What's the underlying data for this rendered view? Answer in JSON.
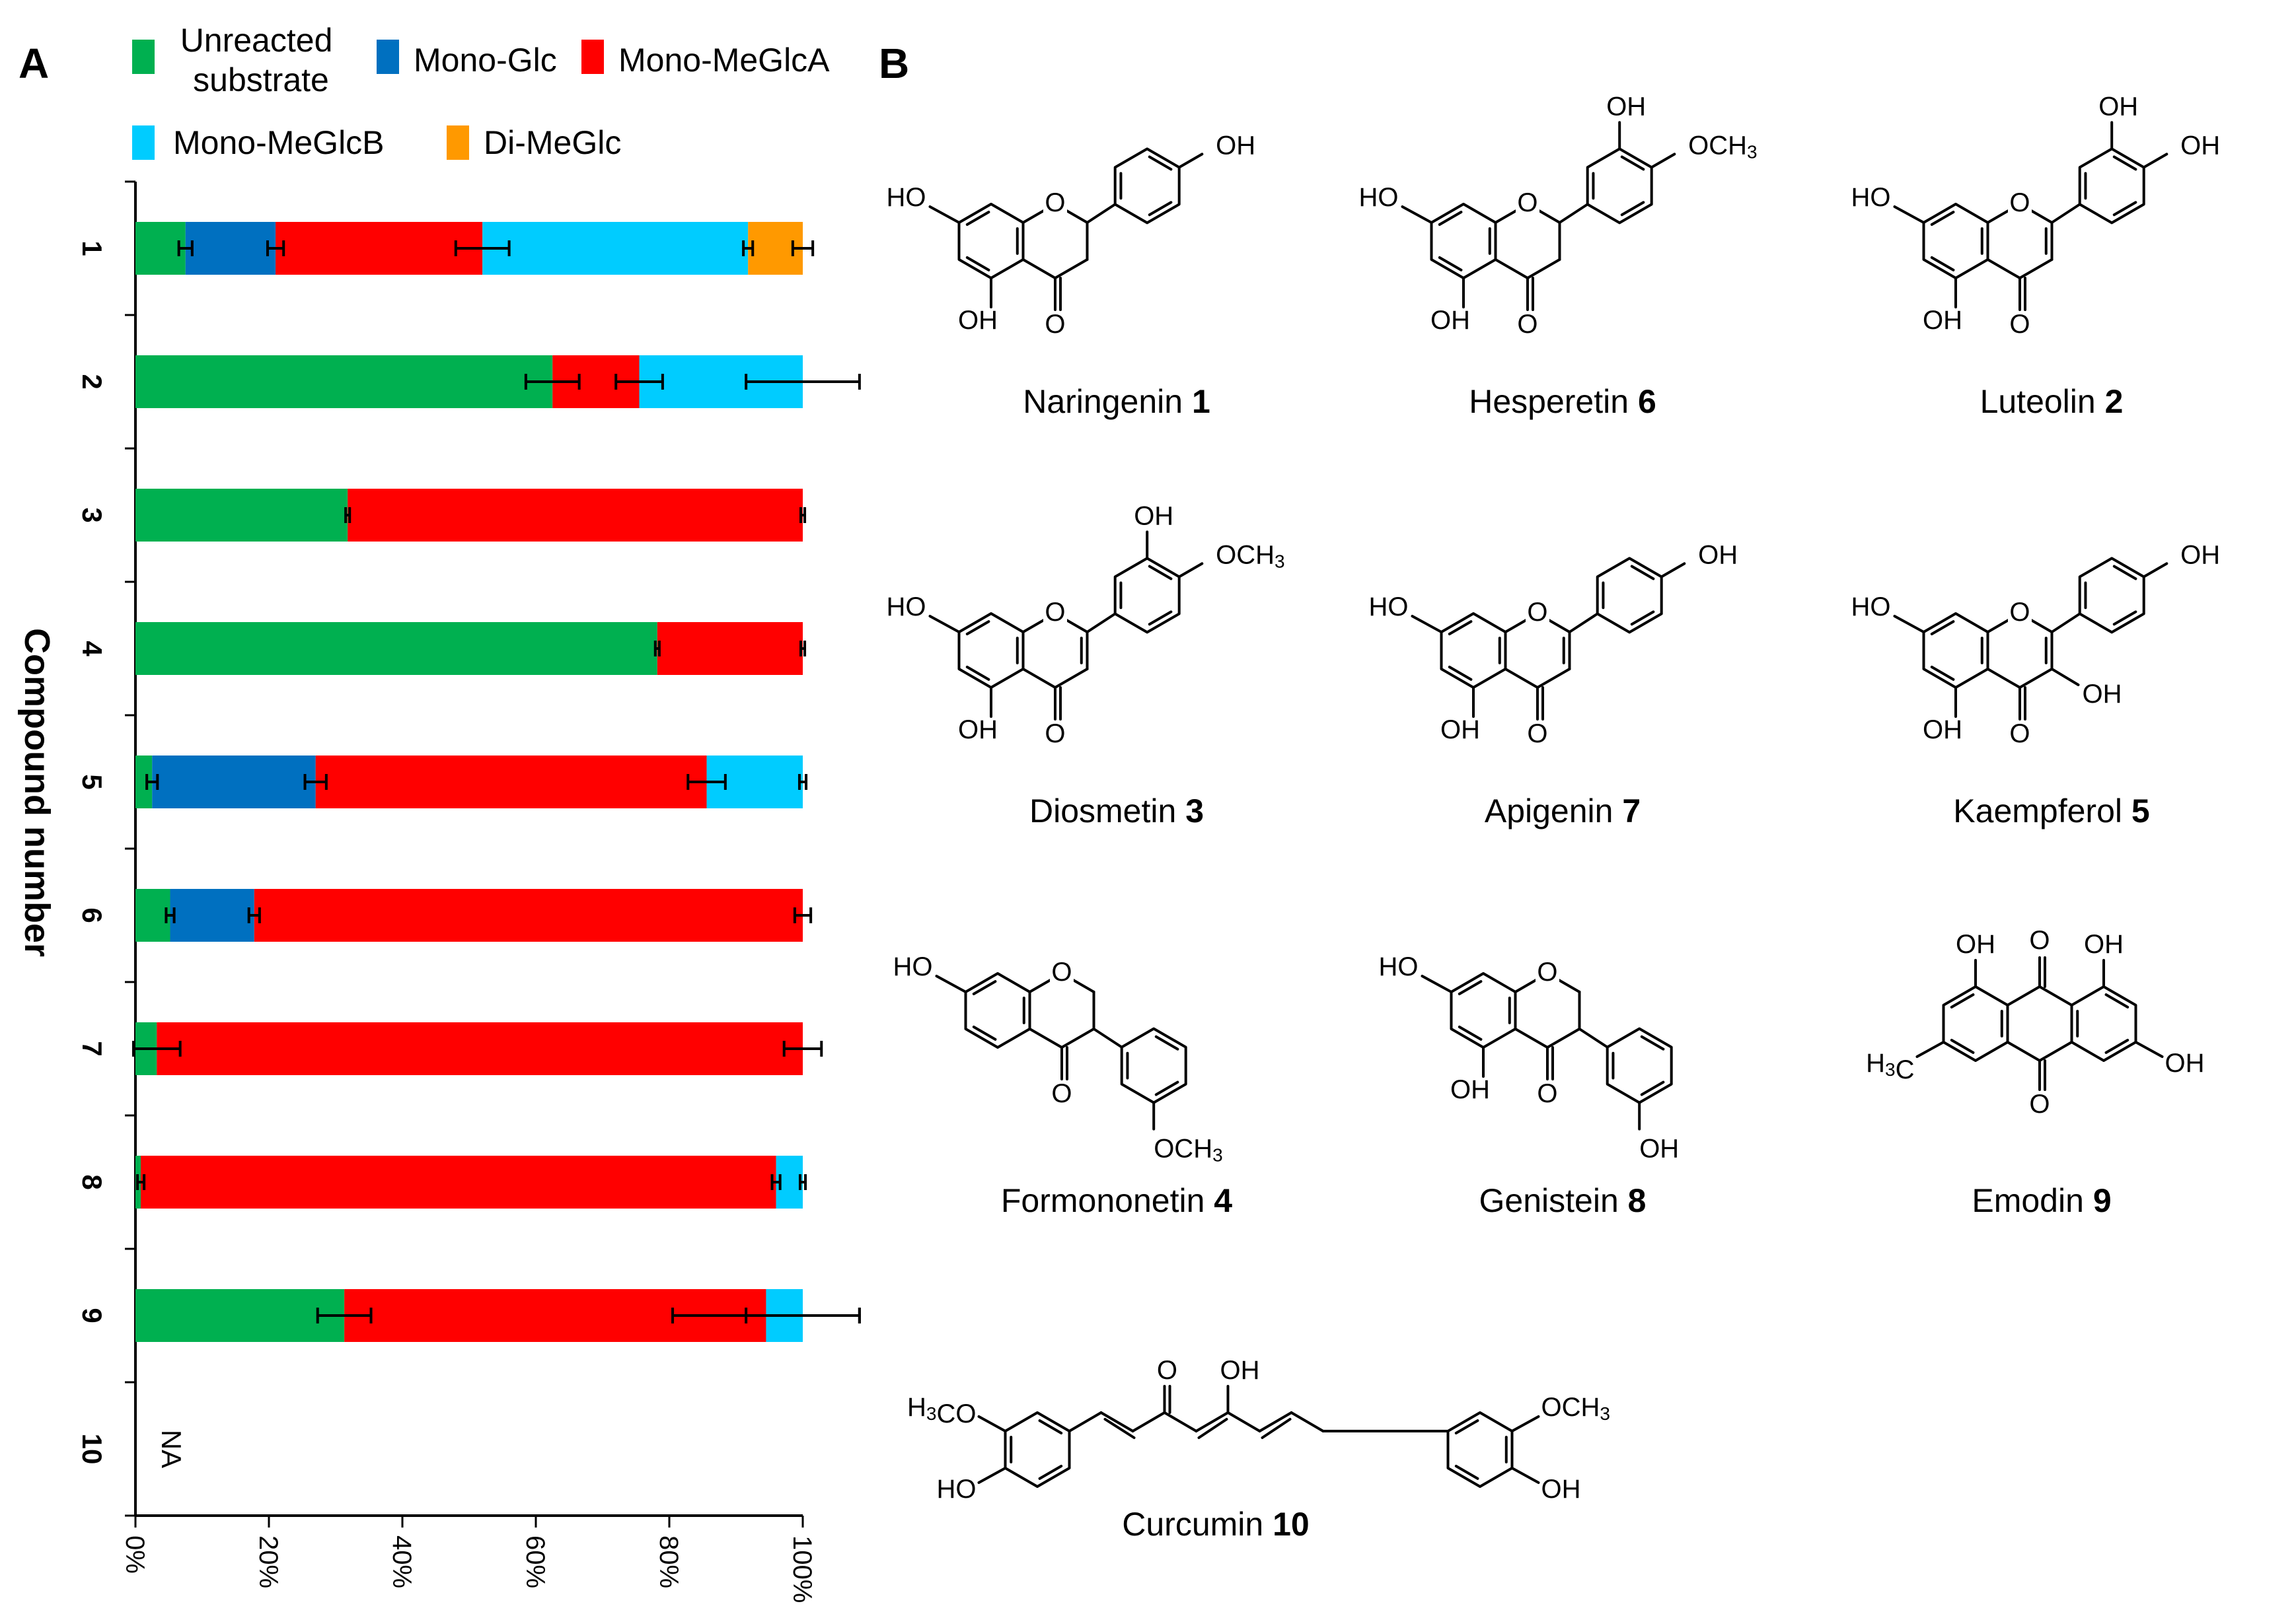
{
  "panels": {
    "a": "A",
    "b": "B"
  },
  "chart_data": {
    "type": "bar",
    "orientation": "horizontal",
    "stacked": true,
    "title": "",
    "xlabel": "",
    "ylabel": "Compound number",
    "xlim": [
      0,
      100
    ],
    "x_ticks": [
      "0%",
      "20%",
      "40%",
      "60%",
      "80%",
      "100%"
    ],
    "categories": [
      "1",
      "2",
      "3",
      "4",
      "5",
      "6",
      "7",
      "8",
      "9",
      "10"
    ],
    "na_label": "NA",
    "legend_position": "top",
    "series": [
      {
        "name": "Unreacted\nsubstrate",
        "color": "#00b050",
        "values": [
          7.5,
          62.5,
          31.8,
          78.2,
          2.5,
          5.2,
          3.2,
          0.8,
          31.3,
          null
        ],
        "errors": [
          1,
          4,
          0.3,
          0.3,
          0.8,
          0.6,
          3.5,
          0.5,
          4,
          null
        ]
      },
      {
        "name": "Mono-Glc",
        "color": "#0070c0",
        "values": [
          13.5,
          0,
          0,
          0,
          24.5,
          12.6,
          0,
          0,
          0,
          null
        ],
        "errors": [
          1.2,
          null,
          null,
          null,
          1.6,
          0.8,
          null,
          null,
          null,
          null
        ]
      },
      {
        "name": "Mono-MeGlcA",
        "color": "#ff0000",
        "values": [
          31.0,
          13.0,
          68.2,
          21.8,
          58.6,
          82.2,
          96.8,
          95.2,
          63.2,
          null
        ],
        "errors": [
          4,
          3.5,
          0.3,
          0.3,
          2.8,
          1.2,
          2.8,
          0.6,
          14,
          null
        ]
      },
      {
        "name": "Mono-MeGlcB",
        "color": "#00ccff",
        "values": [
          39.8,
          24.5,
          0,
          0,
          14.4,
          0,
          0,
          4.0,
          5.5,
          null
        ],
        "errors": [
          0.7,
          8.5,
          null,
          null,
          0.5,
          null,
          null,
          0.4,
          8.5,
          null
        ]
      },
      {
        "name": "Di-MeGlc",
        "color": "#ff9900",
        "values": [
          8.2,
          0,
          0,
          0,
          0,
          0,
          0,
          0,
          0,
          null
        ],
        "errors": [
          1.5,
          null,
          null,
          null,
          null,
          null,
          null,
          null,
          null,
          null
        ]
      }
    ]
  },
  "structures": [
    {
      "name": "Naringenin",
      "number": "1"
    },
    {
      "name": "Hesperetin",
      "number": "6"
    },
    {
      "name": "Luteolin",
      "number": "2"
    },
    {
      "name": "Diosmetin",
      "number": "3"
    },
    {
      "name": "Apigenin",
      "number": "7"
    },
    {
      "name": "Kaempferol",
      "number": "5"
    },
    {
      "name": "Formononetin",
      "number": "4"
    },
    {
      "name": "Genistein",
      "number": "8"
    },
    {
      "name": "Emodin",
      "number": "9"
    },
    {
      "name": "Curcumin",
      "number": "10"
    }
  ],
  "atom_labels": {
    "ho": "HO",
    "oh": "OH",
    "o": "O",
    "och": "OCH",
    "h3c": "H",
    "c": "C",
    "h": "H",
    "three": "3",
    "co": "CO"
  }
}
